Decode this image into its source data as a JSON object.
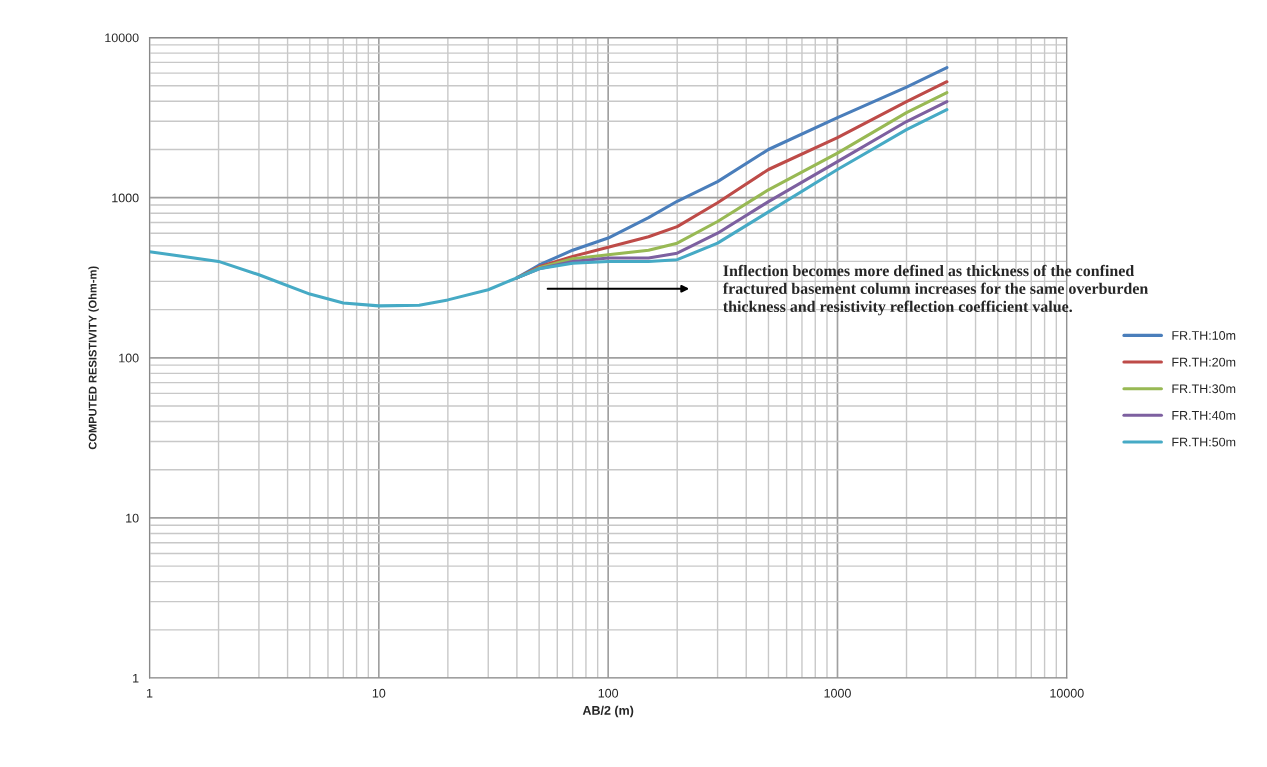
{
  "chart_data": {
    "type": "line",
    "xlabel": "AB/2 (m)",
    "ylabel": "COMPUTED RESISTIVITY (Ohm-m)",
    "x": [
      1,
      2,
      3,
      5,
      7,
      10,
      15,
      20,
      30,
      40,
      50,
      70,
      100,
      150,
      200,
      300,
      500,
      1000,
      2000,
      3000
    ],
    "series": [
      {
        "name": "FR.TH:10m",
        "color": "#4a7ebb",
        "values": [
          null,
          null,
          null,
          null,
          null,
          null,
          null,
          null,
          null,
          316,
          380,
          470,
          560,
          750,
          950,
          1260,
          2000,
          3160,
          4900,
          6500
        ]
      },
      {
        "name": "FR.TH:20m",
        "color": "#be4b48",
        "values": [
          null,
          null,
          null,
          null,
          null,
          null,
          null,
          null,
          null,
          316,
          370,
          430,
          490,
          570,
          660,
          930,
          1500,
          2370,
          3980,
          5300
        ]
      },
      {
        "name": "FR.TH:30m",
        "color": "#98b954",
        "values": [
          null,
          null,
          null,
          null,
          null,
          null,
          null,
          null,
          null,
          316,
          365,
          415,
          440,
          470,
          520,
          710,
          1120,
          1900,
          3400,
          4530
        ]
      },
      {
        "name": "FR.TH:40m",
        "color": "#7d60a0",
        "values": [
          null,
          null,
          null,
          null,
          null,
          null,
          null,
          null,
          null,
          316,
          360,
          400,
          420,
          420,
          450,
          600,
          945,
          1680,
          2990,
          3980
        ]
      },
      {
        "name": "FR.TH:50m",
        "color": "#46aac5",
        "values": [
          460,
          400,
          330,
          250,
          220,
          211,
          213,
          230,
          266,
          316,
          360,
          390,
          400,
          400,
          410,
          520,
          815,
          1500,
          2660,
          3550
        ]
      }
    ],
    "annotations": [
      "Inflection becomes more defined as thickness of the confined fractured basement column increases for the same overburden thickness and resistivity reflection coefficient value."
    ],
    "log": "xy",
    "xlim": [
      1,
      10000
    ],
    "ylim": [
      1,
      10000
    ],
    "xticks": [
      1,
      10,
      100,
      1000,
      10000
    ],
    "yticks": [
      1,
      10,
      100,
      1000,
      10000
    ],
    "grid": true,
    "legend": "right",
    "marker": "none",
    "line_style": "solid"
  }
}
